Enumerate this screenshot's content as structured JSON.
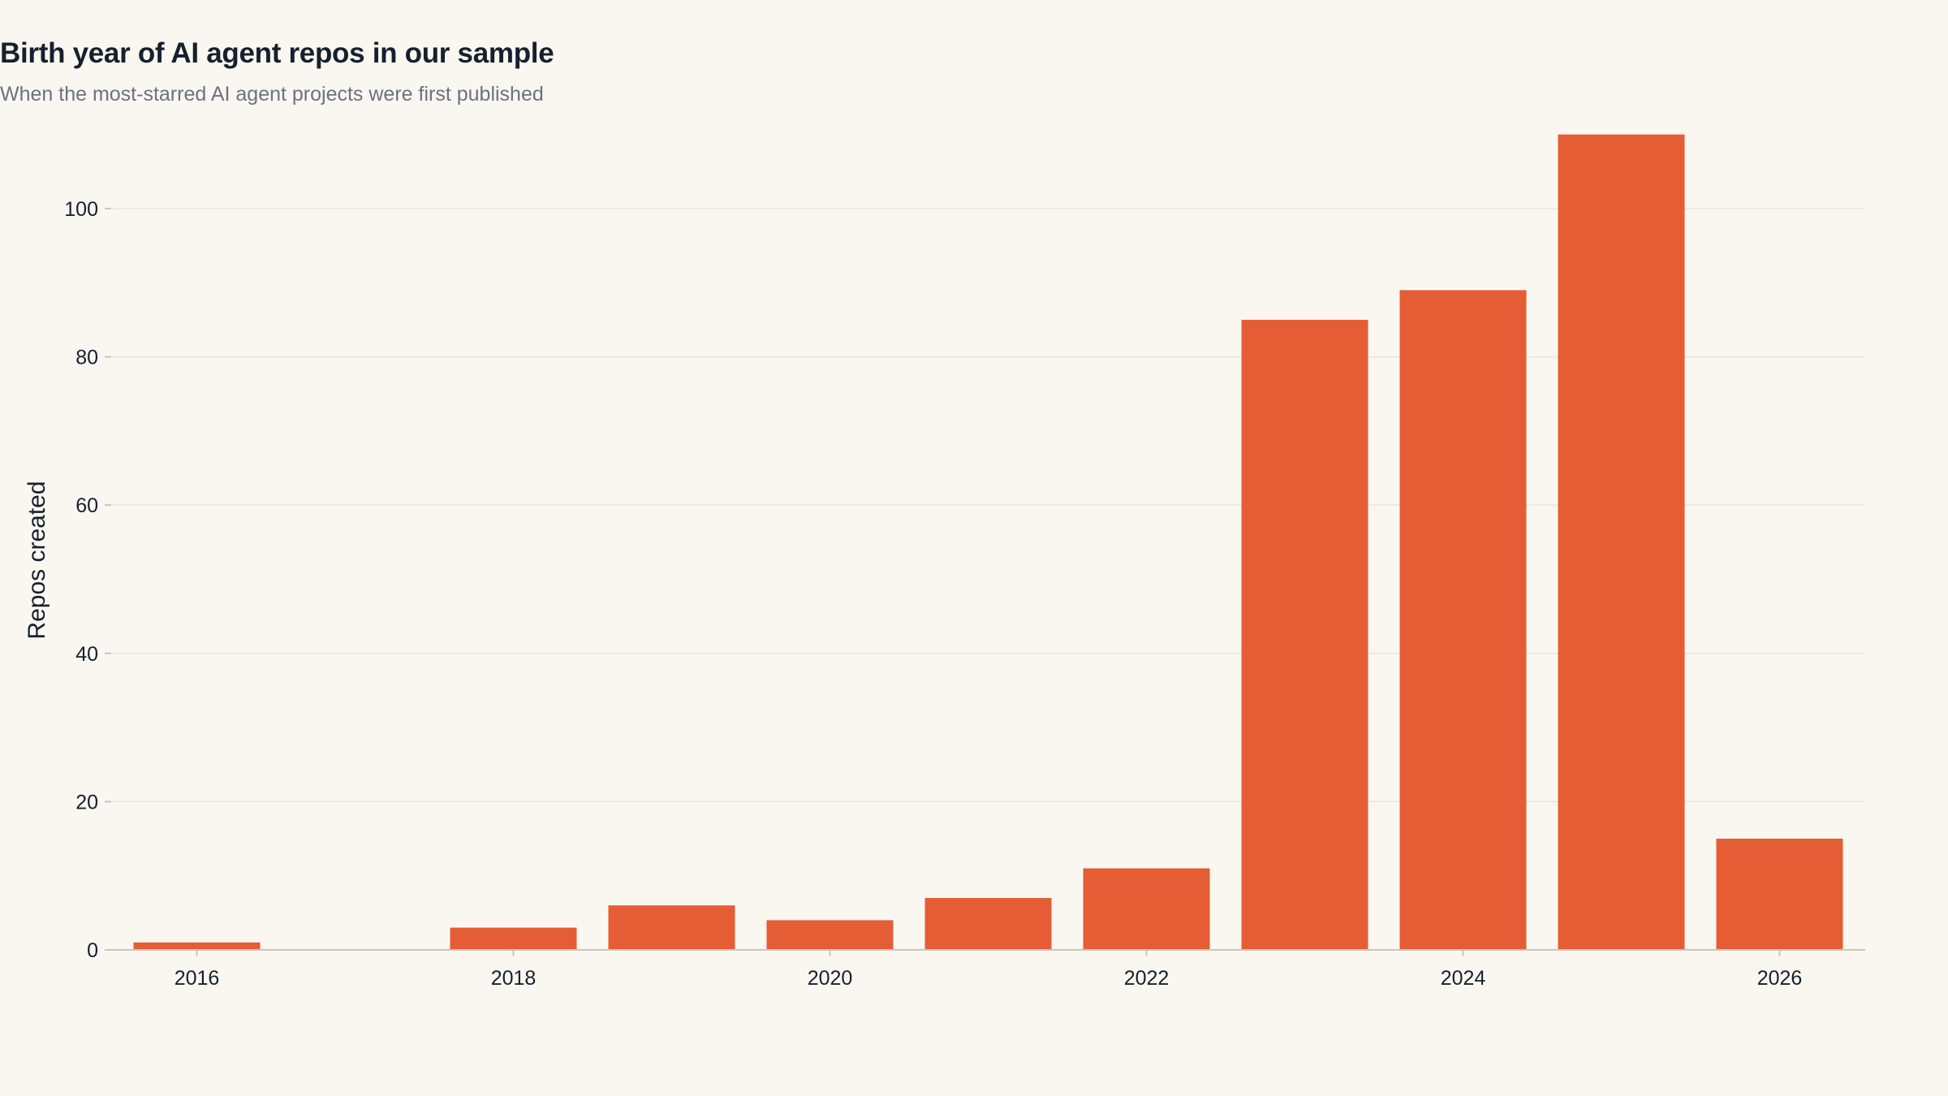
{
  "chart_data": {
    "type": "bar",
    "title": "Birth year of AI agent repos in our sample",
    "subtitle": "When the most-starred AI agent projects were first published",
    "xlabel": "",
    "ylabel": "Repos created",
    "x": [
      2016,
      2017,
      2018,
      2019,
      2020,
      2021,
      2022,
      2023,
      2024,
      2025,
      2026
    ],
    "values": [
      1,
      0,
      3,
      6,
      4,
      7,
      11,
      85,
      89,
      110,
      15
    ],
    "xticks": [
      "2016",
      "2018",
      "2020",
      "2022",
      "2024",
      "2026"
    ],
    "yticks": [
      0,
      20,
      40,
      60,
      80,
      100
    ],
    "ylim": [
      0,
      115
    ],
    "grid": true,
    "legend": "none",
    "colors": {
      "bar": "#e55d35",
      "grid": "#e8e5de",
      "axis": "#c9c6bf",
      "tick_text": "#16202e",
      "title": "#16202e",
      "subtitle": "#6b7280",
      "background": "#faf7f0"
    }
  }
}
